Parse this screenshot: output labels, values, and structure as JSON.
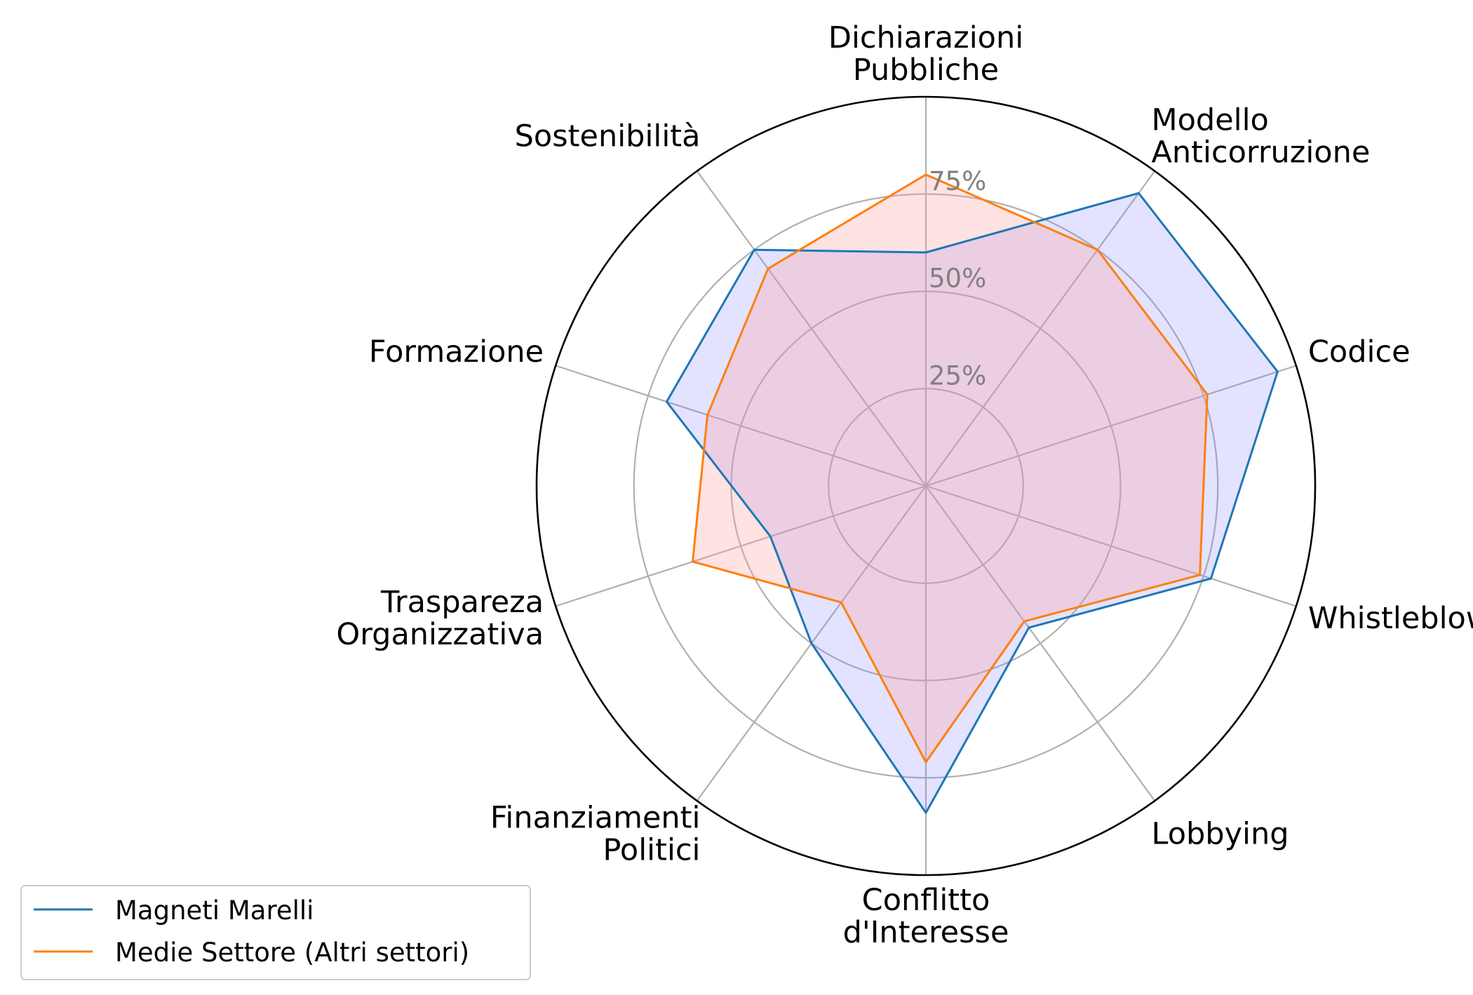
{
  "chart_data": {
    "type": "radar",
    "categories": [
      [
        "Dichiarazioni",
        "Pubbliche"
      ],
      [
        "Modello",
        "Anticorruzione"
      ],
      [
        "Codice"
      ],
      [
        "Whistleblowing"
      ],
      [
        "Lobbying"
      ],
      [
        "Conflitto",
        "d'Interesse"
      ],
      [
        "Finanziamenti",
        "Politici"
      ],
      [
        "Traspareza",
        "Organizzativa"
      ],
      [
        "Formazione"
      ],
      [
        "Sostenibilità"
      ]
    ],
    "series": [
      {
        "name": "Magneti Marelli",
        "values": [
          60,
          93,
          95,
          77,
          45,
          84,
          50,
          42,
          70,
          75
        ],
        "color": "#1f77b4",
        "fill": "#8080ff",
        "fill_opacity": 0.22
      },
      {
        "name": "Medie Settore (Altri settori)",
        "values": [
          80,
          75,
          76,
          74,
          43,
          71,
          37,
          63,
          59,
          69
        ],
        "color": "#ff7f0e",
        "fill": "#ffa0a0",
        "fill_opacity": 0.3
      }
    ],
    "rmax": 100,
    "rticks": [
      25,
      50,
      75
    ],
    "rtick_labels": [
      "25%",
      "50%",
      "75%"
    ],
    "grid": true,
    "legend": "bottom-left"
  }
}
